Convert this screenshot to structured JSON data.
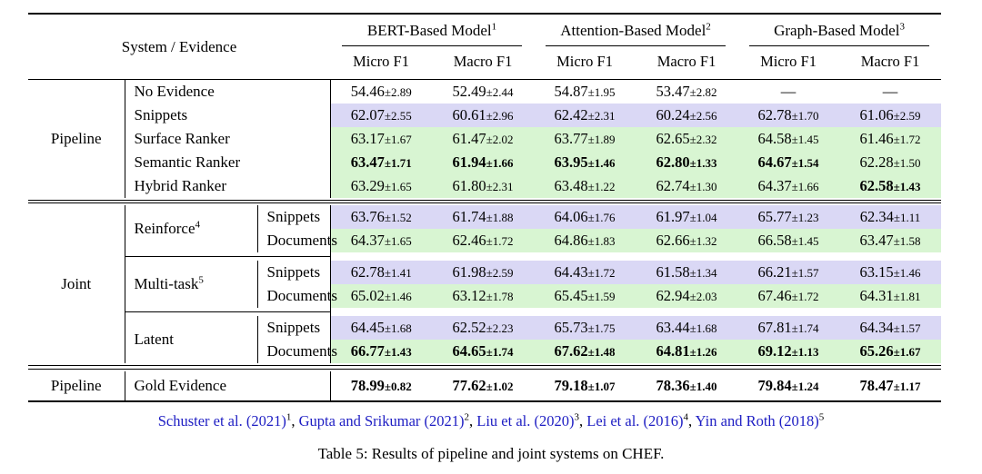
{
  "caption": "Table 5: Results of pipeline and joint systems on CHEF.",
  "colors": {
    "row_lavender": "#dad8f5",
    "row_green": "#d8f5d2",
    "citation_blue": "#1d1dc3"
  },
  "table": {
    "header": {
      "system_evidence": "System / Evidence",
      "groups": [
        {
          "label": "BERT-Based Model",
          "sup": "1"
        },
        {
          "label": "Attention-Based Model",
          "sup": "2"
        },
        {
          "label": "Graph-Based Model",
          "sup": "3"
        }
      ],
      "subcols": [
        "Micro F1",
        "Macro F1"
      ]
    },
    "sections": [
      {
        "label": "Pipeline",
        "sep_after": true,
        "rows": [
          {
            "evidence": "No Evidence",
            "bg": "white",
            "cells": [
              {
                "m": "54.46",
                "s": "2.89"
              },
              {
                "m": "52.49",
                "s": "2.44"
              },
              {
                "m": "54.87",
                "s": "1.95"
              },
              {
                "m": "53.47",
                "s": "2.82"
              },
              null,
              null
            ]
          },
          {
            "evidence": "Snippets",
            "bg": "lavender",
            "cells": [
              {
                "m": "62.07",
                "s": "2.55"
              },
              {
                "m": "60.61",
                "s": "2.96"
              },
              {
                "m": "62.42",
                "s": "2.31"
              },
              {
                "m": "60.24",
                "s": "2.56"
              },
              {
                "m": "62.78",
                "s": "1.70"
              },
              {
                "m": "61.06",
                "s": "2.59"
              }
            ]
          },
          {
            "evidence": "Surface Ranker",
            "bg": "green",
            "cells": [
              {
                "m": "63.17",
                "s": "1.67"
              },
              {
                "m": "61.47",
                "s": "2.02"
              },
              {
                "m": "63.77",
                "s": "1.89"
              },
              {
                "m": "62.65",
                "s": "2.32"
              },
              {
                "m": "64.58",
                "s": "1.45"
              },
              {
                "m": "61.46",
                "s": "1.72"
              }
            ]
          },
          {
            "evidence": "Semantic Ranker",
            "bg": "green",
            "cells": [
              {
                "m": "63.47",
                "s": "1.71",
                "b": 1
              },
              {
                "m": "61.94",
                "s": "1.66",
                "b": 1
              },
              {
                "m": "63.95",
                "s": "1.46",
                "b": 1
              },
              {
                "m": "62.80",
                "s": "1.33",
                "b": 1
              },
              {
                "m": "64.67",
                "s": "1.54",
                "b": 1
              },
              {
                "m": "62.28",
                "s": "1.50"
              }
            ]
          },
          {
            "evidence": "Hybrid Ranker",
            "bg": "green",
            "cells": [
              {
                "m": "63.29",
                "s": "1.65"
              },
              {
                "m": "61.80",
                "s": "2.31"
              },
              {
                "m": "63.48",
                "s": "1.22"
              },
              {
                "m": "62.74",
                "s": "1.30"
              },
              {
                "m": "64.37",
                "s": "1.66"
              },
              {
                "m": "62.58",
                "s": "1.43",
                "b": 1
              }
            ]
          }
        ]
      },
      {
        "label": "Joint",
        "sep_after": true,
        "groups": [
          {
            "method": "Reinforce",
            "sup": "4",
            "rows": [
              {
                "evidence": "Snippets",
                "bg": "lavender",
                "cells": [
                  {
                    "m": "63.76",
                    "s": "1.52"
                  },
                  {
                    "m": "61.74",
                    "s": "1.88"
                  },
                  {
                    "m": "64.06",
                    "s": "1.76"
                  },
                  {
                    "m": "61.97",
                    "s": "1.04"
                  },
                  {
                    "m": "65.77",
                    "s": "1.23"
                  },
                  {
                    "m": "62.34",
                    "s": "1.11"
                  }
                ]
              },
              {
                "evidence": "Documents",
                "bg": "green",
                "cells": [
                  {
                    "m": "64.37",
                    "s": "1.65"
                  },
                  {
                    "m": "62.46",
                    "s": "1.72"
                  },
                  {
                    "m": "64.86",
                    "s": "1.83"
                  },
                  {
                    "m": "62.66",
                    "s": "1.32"
                  },
                  {
                    "m": "66.58",
                    "s": "1.45"
                  },
                  {
                    "m": "63.47",
                    "s": "1.58"
                  }
                ]
              }
            ]
          },
          {
            "method": "Multi-task",
            "sup": "5",
            "rows": [
              {
                "evidence": "Snippets",
                "bg": "lavender",
                "cells": [
                  {
                    "m": "62.78",
                    "s": "1.41"
                  },
                  {
                    "m": "61.98",
                    "s": "2.59"
                  },
                  {
                    "m": "64.43",
                    "s": "1.72"
                  },
                  {
                    "m": "61.58",
                    "s": "1.34"
                  },
                  {
                    "m": "66.21",
                    "s": "1.57"
                  },
                  {
                    "m": "63.15",
                    "s": "1.46"
                  }
                ]
              },
              {
                "evidence": "Documents",
                "bg": "green",
                "cells": [
                  {
                    "m": "65.02",
                    "s": "1.46"
                  },
                  {
                    "m": "63.12",
                    "s": "1.78"
                  },
                  {
                    "m": "65.45",
                    "s": "1.59"
                  },
                  {
                    "m": "62.94",
                    "s": "2.03"
                  },
                  {
                    "m": "67.46",
                    "s": "1.72"
                  },
                  {
                    "m": "64.31",
                    "s": "1.81"
                  }
                ]
              }
            ]
          },
          {
            "method": "Latent",
            "sup": "",
            "rows": [
              {
                "evidence": "Snippets",
                "bg": "lavender",
                "cells": [
                  {
                    "m": "64.45",
                    "s": "1.68"
                  },
                  {
                    "m": "62.52",
                    "s": "2.23"
                  },
                  {
                    "m": "65.73",
                    "s": "1.75"
                  },
                  {
                    "m": "63.44",
                    "s": "1.68"
                  },
                  {
                    "m": "67.81",
                    "s": "1.74"
                  },
                  {
                    "m": "64.34",
                    "s": "1.57"
                  }
                ]
              },
              {
                "evidence": "Documents",
                "bg": "green",
                "cells": [
                  {
                    "m": "66.77",
                    "s": "1.43",
                    "b": 1
                  },
                  {
                    "m": "64.65",
                    "s": "1.74",
                    "b": 1
                  },
                  {
                    "m": "67.62",
                    "s": "1.48",
                    "b": 1
                  },
                  {
                    "m": "64.81",
                    "s": "1.26",
                    "b": 1
                  },
                  {
                    "m": "69.12",
                    "s": "1.13",
                    "b": 1
                  },
                  {
                    "m": "65.26",
                    "s": "1.67",
                    "b": 1
                  }
                ]
              }
            ]
          }
        ]
      },
      {
        "label": "Pipeline",
        "sep_after": false,
        "rows": [
          {
            "evidence": "Gold Evidence",
            "bg": "white",
            "tall": true,
            "cells": [
              {
                "m": "78.99",
                "s": "0.82",
                "b": 1
              },
              {
                "m": "77.62",
                "s": "1.02",
                "b": 1
              },
              {
                "m": "79.18",
                "s": "1.07",
                "b": 1
              },
              {
                "m": "78.36",
                "s": "1.40",
                "b": 1
              },
              {
                "m": "79.84",
                "s": "1.24",
                "b": 1
              },
              {
                "m": "78.47",
                "s": "1.17",
                "b": 1
              }
            ]
          }
        ]
      }
    ]
  },
  "footer": {
    "citations": [
      {
        "text": "Schuster et al. (2021)",
        "sup": "1"
      },
      {
        "text": "Gupta and Srikumar (2021)",
        "sup": "2"
      },
      {
        "text": "Liu et al. (2020)",
        "sup": "3"
      },
      {
        "text": "Lei et al. (2016)",
        "sup": "4"
      },
      {
        "text": "Yin and Roth (2018)",
        "sup": "5"
      }
    ],
    "separator": ", "
  }
}
